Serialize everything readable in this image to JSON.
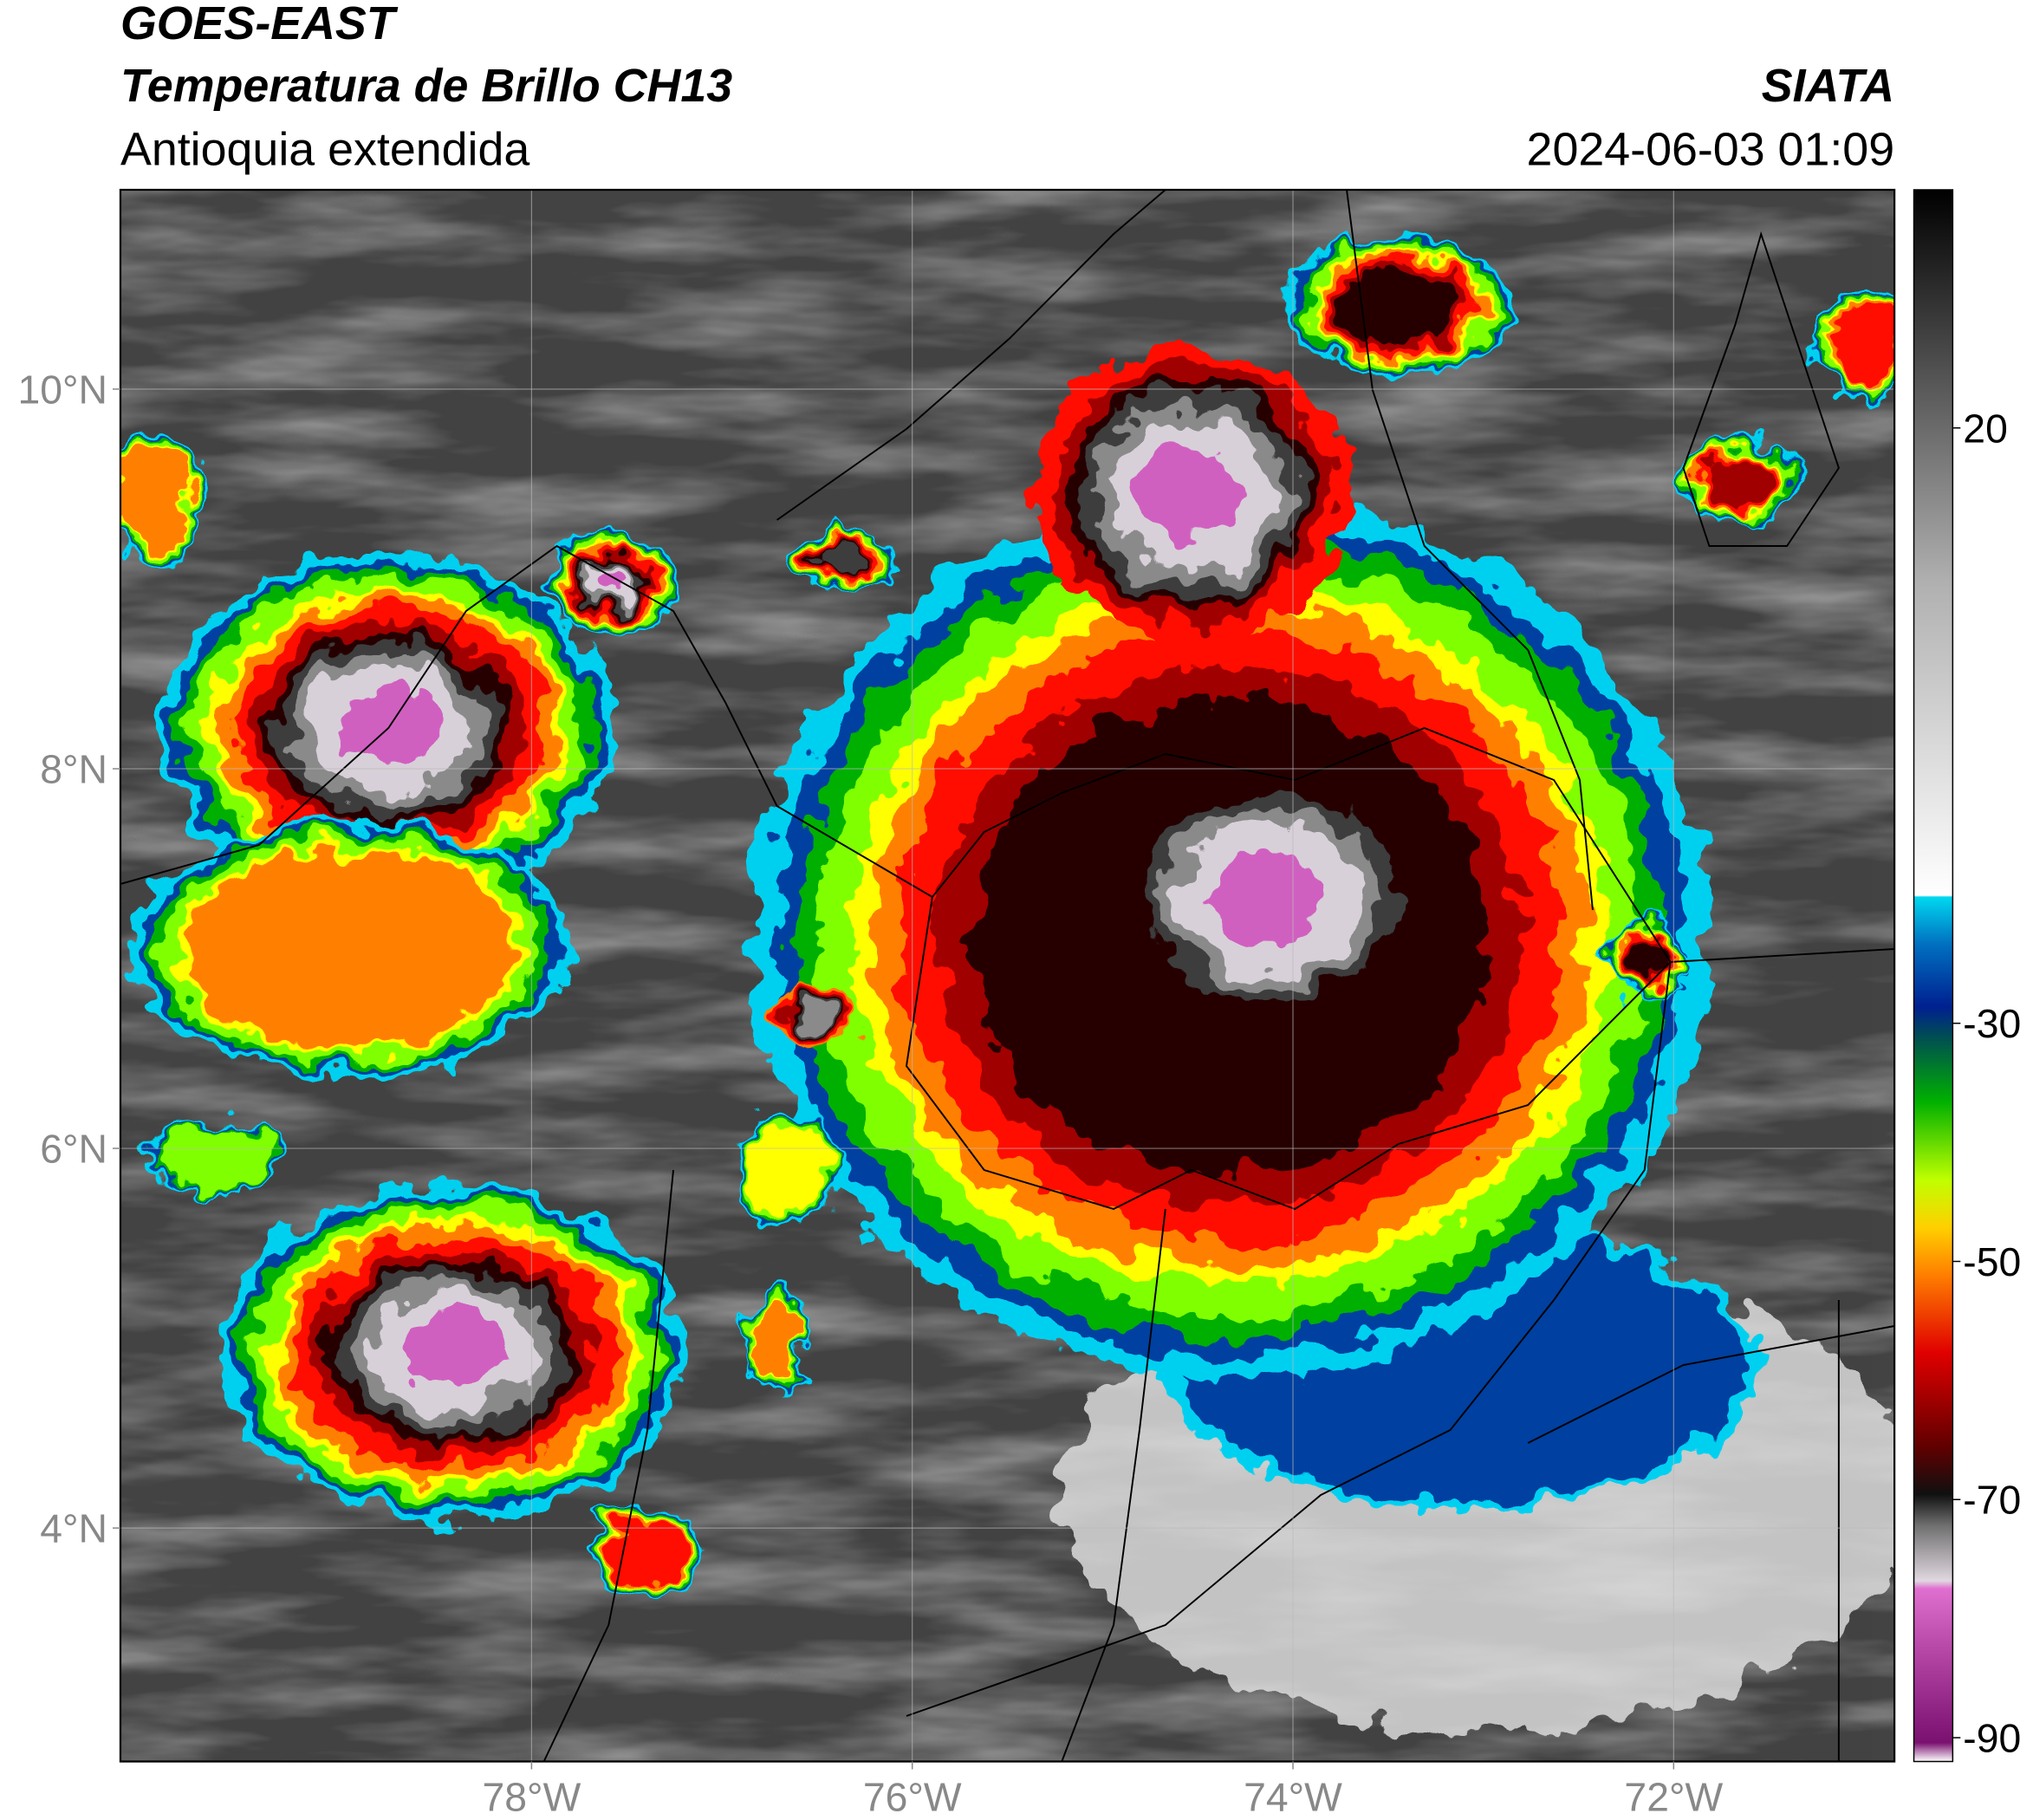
{
  "header": {
    "title": "GOES-EAST",
    "product": "Temperatura de Brillo CH13",
    "region": "Antioquia extendida",
    "source": "SIATA",
    "datetime": "2024-06-03 01:09"
  },
  "map": {
    "xlim": [
      -80.16,
      -70.84
    ],
    "ylim": [
      2.77,
      11.05
    ],
    "xticks": [
      {
        "value": -78,
        "label": "78°W"
      },
      {
        "value": -76,
        "label": "76°W"
      },
      {
        "value": -74,
        "label": "74°W"
      },
      {
        "value": -72,
        "label": "72°W"
      }
    ],
    "yticks": [
      {
        "value": 4,
        "label": "4°N"
      },
      {
        "value": 6,
        "label": "6°N"
      },
      {
        "value": 8,
        "label": "8°N"
      },
      {
        "value": 10,
        "label": "10°N"
      }
    ],
    "grid": true
  },
  "colorbar": {
    "lim": [
      -92,
      40
    ],
    "ticks": [
      20,
      -30,
      -50,
      -70,
      -90
    ]
  }
}
